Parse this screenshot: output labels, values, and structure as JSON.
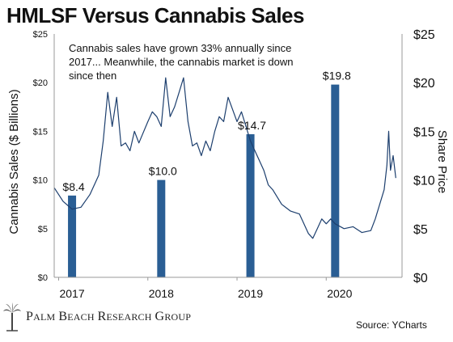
{
  "chart_data": {
    "type": "bar+line",
    "title": "HMLSF Versus Cannabis Sales",
    "annotation": "Cannabis sales have grown 33% annually since 2017... Meanwhile, the cannabis market is down since then",
    "ylabel_left": "Cannabis Sales ($ Billions)",
    "ylabel_right": "Share Price",
    "ylim_left": [
      0,
      25
    ],
    "ylim_right": [
      0,
      25
    ],
    "yticks_left": [
      "$0",
      "$5",
      "$10",
      "$15",
      "$20",
      "$25"
    ],
    "yticks_right": [
      "$0",
      "$5",
      "$10",
      "$15",
      "$20",
      "$25"
    ],
    "xticks": [
      "2017",
      "2018",
      "2019",
      "2020"
    ],
    "xlim": [
      2016.95,
      2020.85
    ],
    "grid": false,
    "bars": {
      "name": "Cannabis Sales",
      "color": "#2a5e94",
      "x": [
        2017.15,
        2018.15,
        2019.15,
        2020.1
      ],
      "values": [
        8.4,
        10.0,
        14.7,
        19.8
      ],
      "labels": [
        "$8.4",
        "$10.0",
        "$14.7",
        "$19.8"
      ]
    },
    "series": [
      {
        "name": "HMLSF",
        "color": "#1d3f6e",
        "x": [
          2016.95,
          2017.05,
          2017.15,
          2017.25,
          2017.35,
          2017.45,
          2017.5,
          2017.55,
          2017.6,
          2017.65,
          2017.7,
          2017.75,
          2017.8,
          2017.85,
          2017.9,
          2018.0,
          2018.05,
          2018.1,
          2018.15,
          2018.2,
          2018.25,
          2018.3,
          2018.35,
          2018.4,
          2018.45,
          2018.5,
          2018.55,
          2018.6,
          2018.65,
          2018.7,
          2018.75,
          2018.8,
          2018.85,
          2018.9,
          2019.0,
          2019.05,
          2019.1,
          2019.15,
          2019.2,
          2019.25,
          2019.3,
          2019.35,
          2019.4,
          2019.5,
          2019.6,
          2019.7,
          2019.8,
          2019.85,
          2019.9,
          2019.95,
          2020.0,
          2020.05,
          2020.1,
          2020.2,
          2020.3,
          2020.4,
          2020.5,
          2020.55,
          2020.6,
          2020.65,
          2020.68,
          2020.7,
          2020.72,
          2020.75,
          2020.78
        ],
        "values": [
          9.2,
          7.8,
          7.0,
          7.2,
          8.5,
          10.5,
          14.0,
          19.0,
          15.5,
          18.5,
          13.5,
          13.8,
          13.0,
          15.0,
          13.8,
          16.0,
          17.0,
          16.5,
          15.5,
          20.5,
          16.5,
          17.5,
          19.0,
          20.5,
          16.0,
          13.5,
          13.8,
          12.5,
          14.0,
          13.0,
          15.0,
          16.5,
          16.0,
          18.5,
          16.0,
          17.0,
          15.5,
          14.0,
          13.0,
          12.0,
          11.0,
          9.5,
          9.0,
          7.5,
          6.8,
          6.5,
          4.5,
          4.0,
          5.0,
          6.0,
          5.5,
          6.0,
          5.5,
          5.0,
          5.2,
          4.6,
          4.8,
          6.0,
          7.5,
          9.0,
          11.5,
          15.0,
          11.0,
          12.5,
          10.2
        ]
      }
    ]
  },
  "brand": {
    "name": "Palm Beach Research Group",
    "logo_icon": "palm-tree-icon"
  },
  "source": "Source: YCharts"
}
